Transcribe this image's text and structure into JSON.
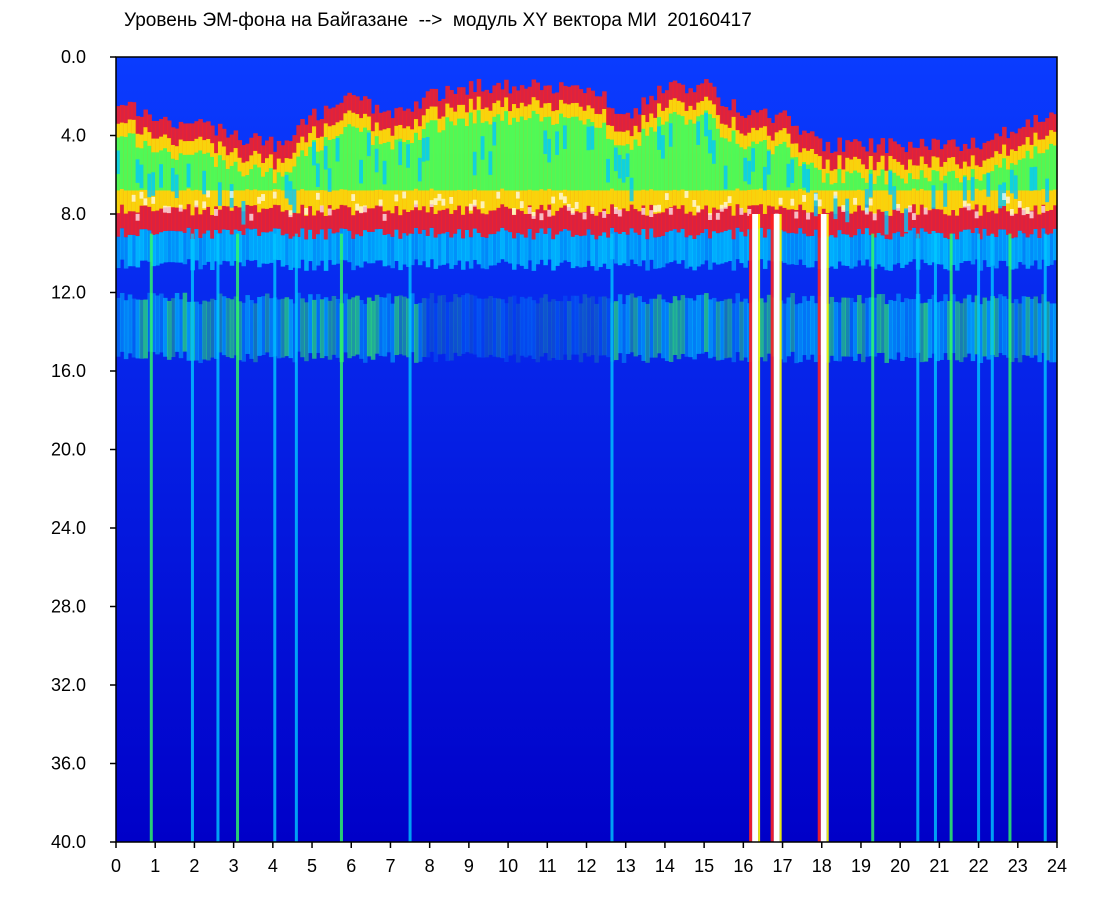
{
  "chart_data": {
    "type": "heatmap",
    "title": "Уровень ЭМ-фона на Байгазане  -->  модуль XY вектора МИ  20160417",
    "xlabel": "",
    "ylabel": "",
    "xlim": [
      0,
      24
    ],
    "ylim": [
      0,
      40
    ],
    "y_axis_inverted": true,
    "x_ticks": [
      "0",
      "1",
      "2",
      "3",
      "4",
      "5",
      "6",
      "7",
      "8",
      "9",
      "10",
      "11",
      "12",
      "13",
      "14",
      "15",
      "16",
      "17",
      "18",
      "19",
      "20",
      "21",
      "22",
      "23",
      "24"
    ],
    "y_ticks": [
      "0.0",
      "4.0",
      "8.0",
      "12.0",
      "16.0",
      "20.0",
      "24.0",
      "28.0",
      "32.0",
      "36.0",
      "40.0"
    ],
    "colorscale": [
      "#0000c8",
      "#0a3cff",
      "#00c8ff",
      "#32ff64",
      "#ffff00",
      "#ff2020",
      "#ffffff"
    ],
    "band_top_by_hour": [
      2.5,
      3.0,
      3.5,
      4.0,
      4.5,
      3.0,
      2.0,
      3.0,
      2.0,
      1.5,
      1.5,
      1.5,
      1.5,
      3.0,
      1.5,
      1.5,
      3.0,
      3.0,
      4.5,
      4.5,
      4.5,
      4.5,
      4.5,
      3.5,
      3.0
    ],
    "intense_band": [
      2,
      9
    ],
    "secondary_band": [
      12,
      15
    ],
    "vertical_streak_hours": [
      0.9,
      1.95,
      2.6,
      3.1,
      4.05,
      4.6,
      5.75,
      7.5,
      12.65,
      16.3,
      16.85,
      18.05,
      19.3,
      20.45,
      20.9,
      21.3,
      22.0,
      22.35,
      22.8,
      23.7
    ]
  }
}
